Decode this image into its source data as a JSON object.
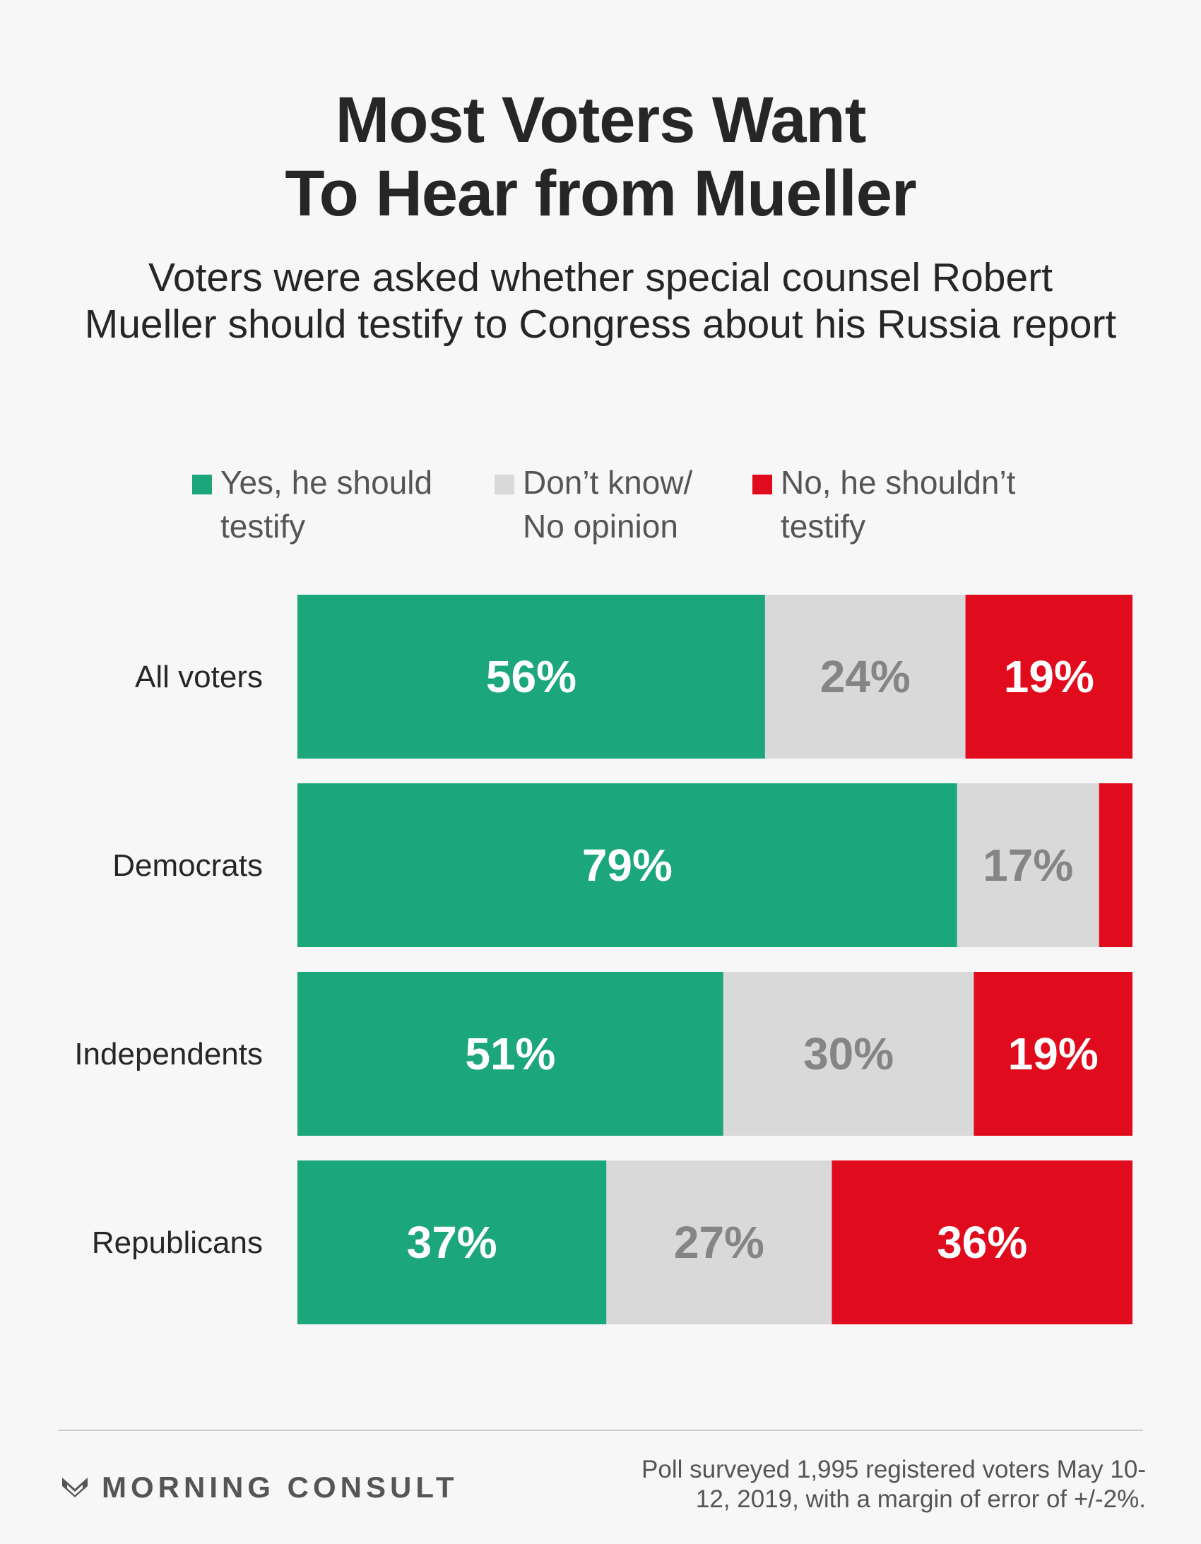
{
  "header": {
    "title_line1": "Most Voters Want",
    "title_line2": "To Hear from Mueller",
    "subtitle_line1": "Voters were asked whether special counsel Robert",
    "subtitle_line2": "Mueller should testify to Congress about his Russia report"
  },
  "chart_data": {
    "type": "bar",
    "orientation": "horizontal",
    "stacked": true,
    "categories": [
      "All voters",
      "Democrats",
      "Independents",
      "Republicans"
    ],
    "series": [
      {
        "name": "Yes, he should\ntestify",
        "color": "#1ba67b",
        "label_color": "#ffffff",
        "values": [
          56,
          79,
          51,
          37
        ],
        "labels": [
          "56%",
          "79%",
          "51%",
          "37%"
        ]
      },
      {
        "name": "Don’t know/\nNo opinion",
        "color": "#d9d9d9",
        "label_color": "#858585",
        "values": [
          24,
          17,
          30,
          27
        ],
        "labels": [
          "24%",
          "17%",
          "30%",
          "27%"
        ]
      },
      {
        "name": "No, he shouldn’t\ntestify",
        "color": "#e00b1c",
        "label_color": "#ffffff",
        "values": [
          19,
          5,
          19,
          36
        ],
        "labels": [
          "19%",
          "",
          "19%",
          "36%"
        ]
      }
    ],
    "xlim": [
      0,
      100
    ],
    "grid": false,
    "legend_position": "top"
  },
  "footer": {
    "brand": "MORNING CONSULT",
    "brand_icon": "morning-consult-logo-icon",
    "note": "Poll surveyed 1,995 registered voters May 10-12, 2019, with a margin of error of +/-2%."
  }
}
